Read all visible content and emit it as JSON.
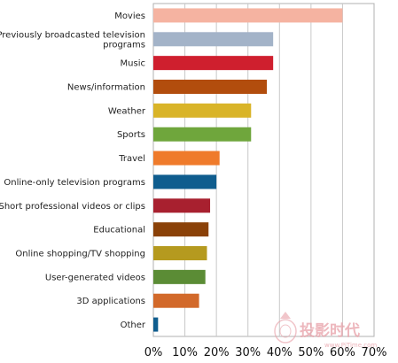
{
  "chart_data": {
    "type": "bar",
    "orientation": "horizontal",
    "categories": [
      "Movies",
      "Previously broadcasted television programs",
      "Music",
      "News/information",
      "Weather",
      "Sports",
      "Travel",
      "Online-only television programs",
      "Short professional videos or clips",
      "Educational",
      "Online shopping/TV shopping",
      "User-generated videos",
      "3D applications",
      "Other"
    ],
    "category_lines": [
      [
        "Movies"
      ],
      [
        "Previously broadcasted television",
        "programs"
      ],
      [
        "Music"
      ],
      [
        "News/information"
      ],
      [
        "Weather"
      ],
      [
        "Sports"
      ],
      [
        "Travel"
      ],
      [
        "Online-only television programs"
      ],
      [
        "Short professional videos or clips"
      ],
      [
        "Educational"
      ],
      [
        "Online shopping/TV shopping"
      ],
      [
        "User-generated videos"
      ],
      [
        "3D applications"
      ],
      [
        "Other"
      ]
    ],
    "values": [
      60,
      38,
      38,
      36,
      31,
      31,
      21,
      20,
      18,
      17.5,
      17,
      16.5,
      14.5,
      1.5
    ],
    "bar_colors": [
      "#f5b3a1",
      "#a3b3c8",
      "#cf1f2e",
      "#b24d0d",
      "#d9b428",
      "#6fa63c",
      "#ef7b2b",
      "#0f5d8e",
      "#a8202f",
      "#8a4108",
      "#b59a1f",
      "#5b8c35",
      "#d2692a",
      "#0f5d8e"
    ],
    "xlim": [
      0,
      70
    ],
    "xticks": [
      0,
      10,
      20,
      30,
      40,
      50,
      60,
      70
    ],
    "xtick_labels": [
      "0%",
      "10%",
      "20%",
      "30%",
      "40%",
      "50%",
      "60%",
      "70%"
    ],
    "title": "",
    "xlabel": "",
    "ylabel": "",
    "grid": "vertical",
    "legend": "none"
  },
  "watermark": {
    "text": "投影时代",
    "url": "www.PjTime.com"
  }
}
